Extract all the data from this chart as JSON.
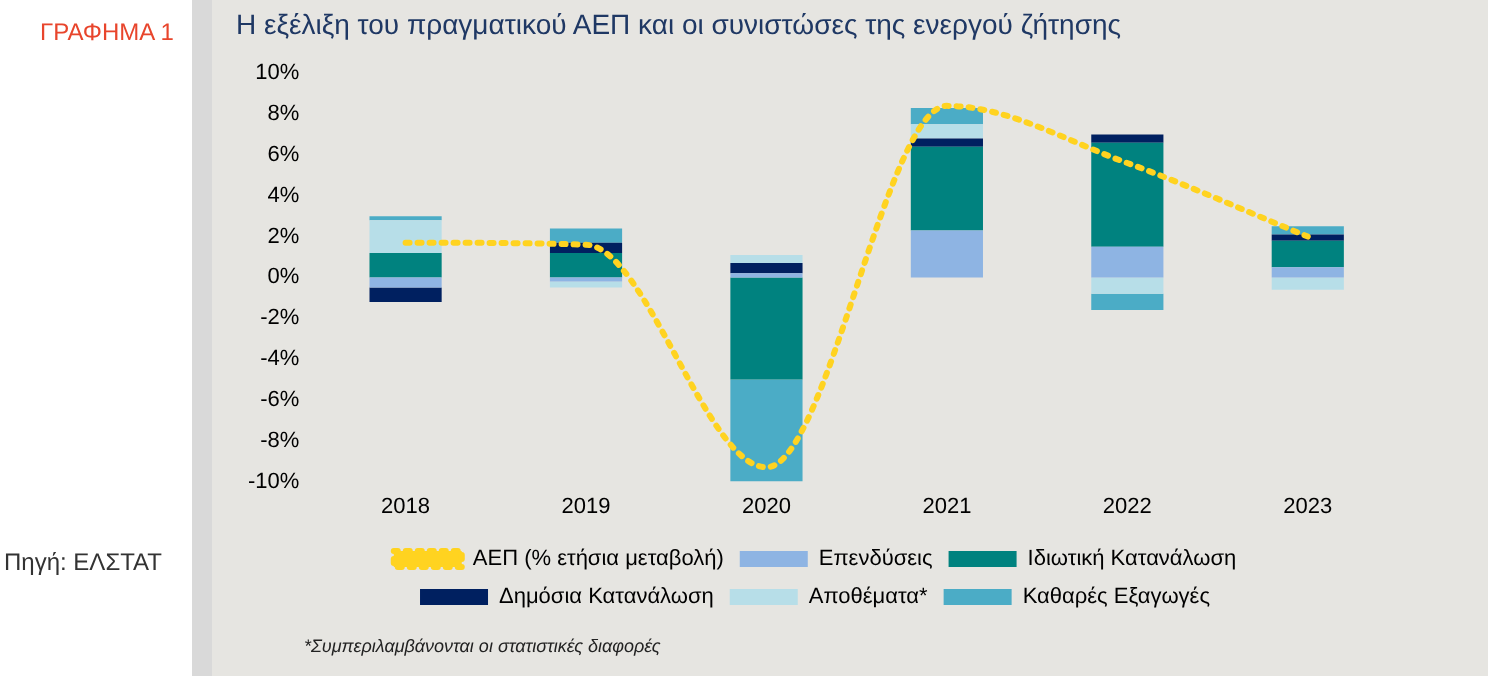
{
  "chart_data": {
    "type": "bar",
    "title": "Η εξέλιξη του πραγματικού ΑΕΠ και οι συνιστώσες της ενεργού ζήτησης",
    "categories": [
      "2018",
      "2019",
      "2020",
      "2021",
      "2022",
      "2023"
    ],
    "stacked": true,
    "series": [
      {
        "name": "Επενδύσεις",
        "color": "#8eb4e3",
        "values": [
          -0.5,
          -0.2,
          0.2,
          2.3,
          1.5,
          0.5
        ]
      },
      {
        "name": "Ιδιωτική Κατανάλωση",
        "color": "#00827f",
        "values": [
          1.2,
          1.2,
          -5.0,
          4.1,
          5.1,
          1.3
        ]
      },
      {
        "name": "Δημόσια Κατανάλωση",
        "color": "#002060",
        "values": [
          -0.7,
          0.5,
          0.5,
          0.4,
          0.4,
          0.3
        ]
      },
      {
        "name": "Αποθέματα*",
        "color": "#b7dee8",
        "values": [
          1.6,
          -0.3,
          0.4,
          0.7,
          -0.8,
          -0.6
        ]
      },
      {
        "name": "Καθαρές Εξαγωγές",
        "color": "#4bacc6",
        "values": [
          0.2,
          0.7,
          -5.0,
          0.8,
          -0.8,
          0.4
        ]
      },
      {
        "name": "ΑΕΠ (% ετήσια μεταβολή)",
        "type": "line",
        "color": "#ffd320",
        "line_style": "dotted",
        "marker": "none",
        "values": [
          1.7,
          1.6,
          -9.3,
          8.4,
          5.6,
          2.0
        ]
      }
    ],
    "ylim": [
      -10,
      10
    ],
    "yticks": [
      {
        "value": -10,
        "label": "-10%"
      },
      {
        "value": -8,
        "label": "-8%"
      },
      {
        "value": -6,
        "label": "-6%"
      },
      {
        "value": -4,
        "label": "-4%"
      },
      {
        "value": -2,
        "label": "-2%"
      },
      {
        "value": 0,
        "label": "0%"
      },
      {
        "value": 2,
        "label": "2%"
      },
      {
        "value": 4,
        "label": "4%"
      },
      {
        "value": 6,
        "label": "6%"
      },
      {
        "value": 8,
        "label": "8%"
      },
      {
        "value": 10,
        "label": "10%"
      }
    ],
    "grid": false,
    "legend": "bottom",
    "annotations": [
      "ΓΡΑΦΗΜΑ 1",
      "Πηγή: ΕΛΣΤΑΤ",
      "*Συμπεριλαμβάνονται οι στατιστικές διαφορές"
    ]
  }
}
